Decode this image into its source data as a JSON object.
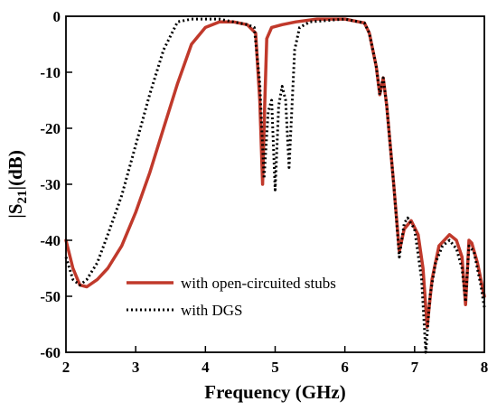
{
  "chart_data": {
    "type": "line",
    "xlabel": "Frequency (GHz)",
    "ylabel": {
      "prefix": "|S",
      "sub": "21",
      "suffix": "|(dB)"
    },
    "xlim": [
      2,
      8
    ],
    "ylim": [
      -60,
      0
    ],
    "x_ticks": [
      "2",
      "3",
      "4",
      "5",
      "6",
      "7",
      "8"
    ],
    "y_ticks": [
      "0",
      "-10",
      "-20",
      "-30",
      "-40",
      "-50",
      "-60"
    ],
    "grid": false,
    "legend_position": "lower-left",
    "series": [
      {
        "name": "with open-circuited stubs",
        "color": "#c0392b",
        "style": "solid",
        "points": [
          [
            2.0,
            -40
          ],
          [
            2.1,
            -45
          ],
          [
            2.2,
            -48
          ],
          [
            2.3,
            -48.3
          ],
          [
            2.45,
            -47
          ],
          [
            2.6,
            -45
          ],
          [
            2.8,
            -41
          ],
          [
            3.0,
            -35
          ],
          [
            3.2,
            -28
          ],
          [
            3.4,
            -20
          ],
          [
            3.6,
            -12
          ],
          [
            3.8,
            -5
          ],
          [
            4.0,
            -2
          ],
          [
            4.2,
            -1
          ],
          [
            4.4,
            -1
          ],
          [
            4.6,
            -1.5
          ],
          [
            4.72,
            -3
          ],
          [
            4.78,
            -15
          ],
          [
            4.82,
            -30
          ],
          [
            4.85,
            -16
          ],
          [
            4.88,
            -4
          ],
          [
            4.95,
            -2
          ],
          [
            5.1,
            -1.5
          ],
          [
            5.3,
            -1
          ],
          [
            5.6,
            -0.5
          ],
          [
            6.0,
            -0.5
          ],
          [
            6.2,
            -1
          ],
          [
            6.28,
            -1.2
          ],
          [
            6.35,
            -3
          ],
          [
            6.45,
            -9
          ],
          [
            6.5,
            -14
          ],
          [
            6.55,
            -11
          ],
          [
            6.6,
            -16
          ],
          [
            6.7,
            -30
          ],
          [
            6.78,
            -42
          ],
          [
            6.85,
            -38
          ],
          [
            6.95,
            -36.5
          ],
          [
            7.05,
            -39
          ],
          [
            7.12,
            -45
          ],
          [
            7.18,
            -55.5
          ],
          [
            7.25,
            -47
          ],
          [
            7.35,
            -41
          ],
          [
            7.5,
            -39
          ],
          [
            7.6,
            -40
          ],
          [
            7.68,
            -43
          ],
          [
            7.73,
            -51.5
          ],
          [
            7.78,
            -40
          ],
          [
            7.82,
            -40.5
          ],
          [
            7.9,
            -44
          ],
          [
            8.0,
            -50
          ]
        ]
      },
      {
        "name": "with DGS",
        "color": "#000000",
        "style": "dotted",
        "points": [
          [
            2.0,
            -43
          ],
          [
            2.1,
            -47
          ],
          [
            2.2,
            -48
          ],
          [
            2.3,
            -47
          ],
          [
            2.45,
            -44
          ],
          [
            2.6,
            -39
          ],
          [
            2.8,
            -32
          ],
          [
            3.0,
            -23
          ],
          [
            3.2,
            -14
          ],
          [
            3.4,
            -6
          ],
          [
            3.6,
            -1
          ],
          [
            3.8,
            -0.5
          ],
          [
            4.0,
            -0.5
          ],
          [
            4.2,
            -0.5
          ],
          [
            4.4,
            -1
          ],
          [
            4.6,
            -1.5
          ],
          [
            4.7,
            -2
          ],
          [
            4.78,
            -12
          ],
          [
            4.84,
            -29
          ],
          [
            4.9,
            -17
          ],
          [
            4.95,
            -15
          ],
          [
            5.0,
            -31
          ],
          [
            5.05,
            -16
          ],
          [
            5.1,
            -12.5
          ],
          [
            5.15,
            -15
          ],
          [
            5.2,
            -27
          ],
          [
            5.28,
            -6
          ],
          [
            5.35,
            -2
          ],
          [
            5.5,
            -1
          ],
          [
            6.0,
            -0.5
          ],
          [
            6.2,
            -1
          ],
          [
            6.28,
            -1.2
          ],
          [
            6.35,
            -3
          ],
          [
            6.45,
            -9
          ],
          [
            6.5,
            -14
          ],
          [
            6.55,
            -11
          ],
          [
            6.6,
            -16
          ],
          [
            6.7,
            -30
          ],
          [
            6.78,
            -43
          ],
          [
            6.85,
            -37
          ],
          [
            6.9,
            -36
          ],
          [
            7.0,
            -38
          ],
          [
            7.1,
            -47
          ],
          [
            7.16,
            -60
          ],
          [
            7.22,
            -50
          ],
          [
            7.3,
            -44
          ],
          [
            7.4,
            -41
          ],
          [
            7.5,
            -40
          ],
          [
            7.6,
            -41.5
          ],
          [
            7.68,
            -45
          ],
          [
            7.73,
            -51
          ],
          [
            7.78,
            -41
          ],
          [
            7.85,
            -42
          ],
          [
            7.95,
            -48
          ],
          [
            8.0,
            -52
          ]
        ]
      }
    ]
  }
}
